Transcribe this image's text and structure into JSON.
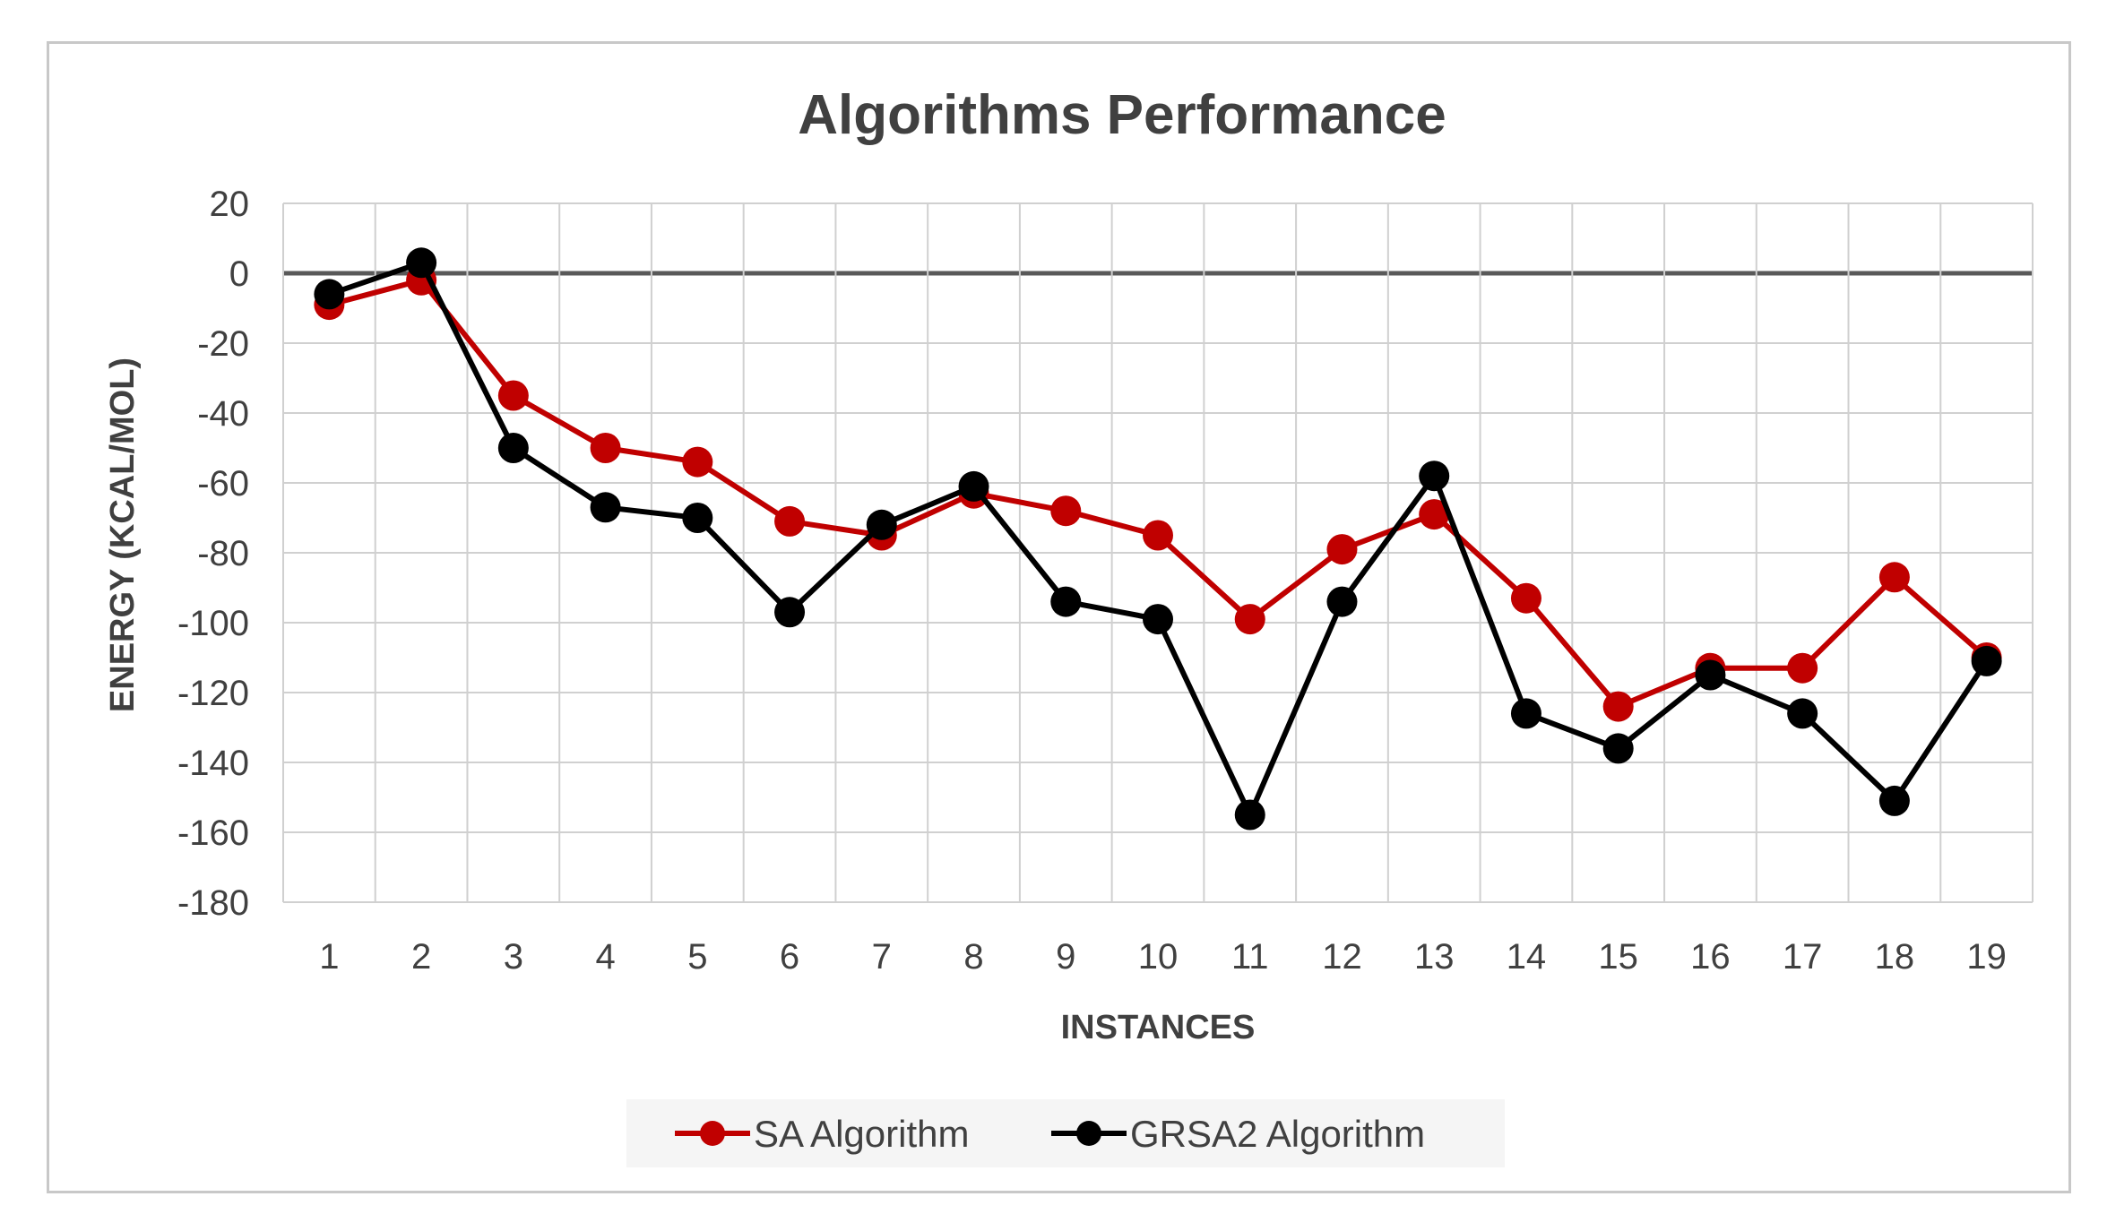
{
  "chart_data": {
    "type": "line",
    "title": "Algorithms Performance",
    "xlabel": "INSTANCES",
    "ylabel": "ENERGY (KCAL/MOL)",
    "categories": [
      "1",
      "2",
      "3",
      "4",
      "5",
      "6",
      "7",
      "8",
      "9",
      "10",
      "11",
      "12",
      "13",
      "14",
      "15",
      "16",
      "17",
      "18",
      "19"
    ],
    "ylim": [
      -180,
      20
    ],
    "yticks": [
      20,
      0,
      -20,
      -40,
      -60,
      -80,
      -100,
      -120,
      -140,
      -160,
      -180
    ],
    "grid": true,
    "legend_position": "bottom",
    "series": [
      {
        "name": "SA Algorithm",
        "color": "#c00000",
        "values": [
          -9,
          -2,
          -35,
          -50,
          -54,
          -71,
          -75,
          -63,
          -68,
          -75,
          -99,
          -79,
          -69,
          -93,
          -124,
          -113,
          -113,
          -87,
          -110
        ]
      },
      {
        "name": "GRSA2 Algorithm",
        "color": "#000000",
        "values": [
          -6,
          3,
          -50,
          -67,
          -70,
          -97,
          -72,
          -61,
          -94,
          -99,
          -155,
          -94,
          -58,
          -126,
          -136,
          -115,
          -126,
          -151,
          -111
        ]
      }
    ]
  }
}
